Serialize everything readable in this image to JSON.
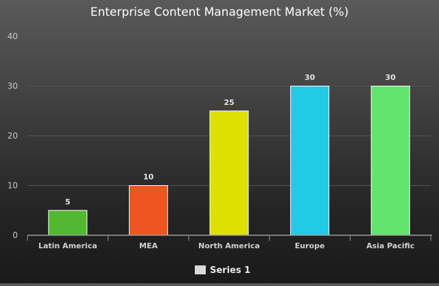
{
  "chart_data": {
    "type": "bar",
    "title": "Enterprise Content Management Market (%)",
    "categories": [
      "Latin America",
      "MEA",
      "North America",
      "Europe",
      "Asia Pacific"
    ],
    "series": [
      {
        "name": "Series 1",
        "values": [
          5,
          10,
          25,
          30,
          30
        ],
        "colors": [
          "#52b832",
          "#ef561f",
          "#dde000",
          "#22cbe5",
          "#62e46e"
        ]
      }
    ],
    "ylim": [
      0,
      40
    ],
    "yticks": [
      0,
      10,
      20,
      30,
      40
    ],
    "grid": true,
    "legend": "bottom-center",
    "colors": {
      "grid": "#555555",
      "axis": "#9a9a9a",
      "bar_border": "#ffffff",
      "legend_swatch": "#d9d9d9"
    }
  }
}
